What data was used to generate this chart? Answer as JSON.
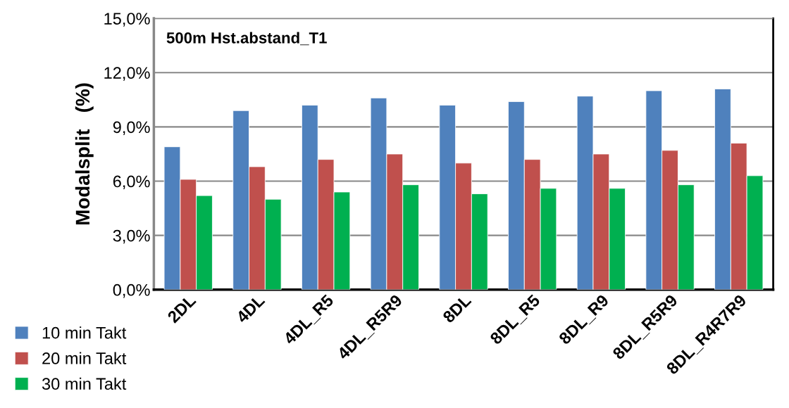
{
  "chart_data": {
    "type": "bar",
    "title": "500m Hst.abstand_T1",
    "ylabel": "Modalsplit   (%)",
    "categories": [
      "2DL",
      "4DL",
      "4DL_R5",
      "4DL_R5R9",
      "8DL",
      "8DL_R5",
      "8DL_R9",
      "8DL_R5R9",
      "8DL_R4R7R9"
    ],
    "series": [
      {
        "name": "10 min Takt",
        "color": "#4f81bd",
        "values": [
          7.9,
          9.9,
          10.2,
          10.6,
          10.2,
          10.4,
          10.7,
          11.0,
          11.1
        ]
      },
      {
        "name": "20 min Takt",
        "color": "#c0504d",
        "values": [
          6.1,
          6.8,
          7.2,
          7.5,
          7.0,
          7.2,
          7.5,
          7.7,
          8.1
        ]
      },
      {
        "name": "30 min Takt",
        "color": "#00b050",
        "values": [
          5.2,
          5.0,
          5.4,
          5.8,
          5.3,
          5.6,
          5.6,
          5.8,
          6.3
        ]
      }
    ],
    "ylim": [
      0,
      15
    ],
    "yticks": [
      {
        "value": 0,
        "label": "0,0%"
      },
      {
        "value": 3,
        "label": "3,0%"
      },
      {
        "value": 6,
        "label": "6,0%"
      },
      {
        "value": 9,
        "label": "9,0%"
      },
      {
        "value": 12,
        "label": "12,0%"
      },
      {
        "value": 15,
        "label": "15,0%"
      }
    ],
    "grid": "y",
    "legend": "bottom left"
  }
}
